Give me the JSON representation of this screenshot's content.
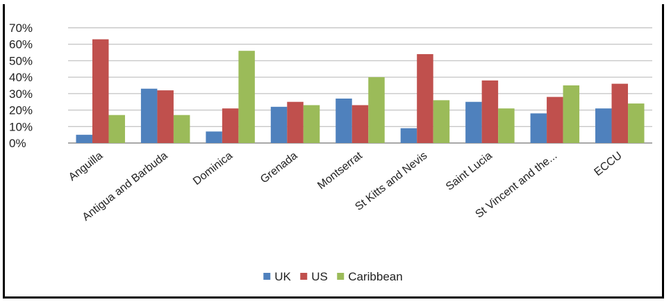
{
  "chart_data": {
    "type": "bar",
    "title": "",
    "xlabel": "",
    "ylabel": "",
    "categories": [
      "Anguilla",
      "Antigua and Barbuda",
      "Dominica",
      "Grenada",
      "Montserrat",
      "St Kitts and Nevis",
      "Saint Lucia",
      "St Vincent  and the...",
      "ECCU"
    ],
    "series": [
      {
        "name": "UK",
        "color": "#4F81BD",
        "values": [
          5,
          33,
          7,
          22,
          27,
          9,
          25,
          18,
          21
        ]
      },
      {
        "name": "US",
        "color": "#C0504D",
        "values": [
          63,
          32,
          21,
          25,
          23,
          54,
          38,
          28,
          36
        ]
      },
      {
        "name": "Caribbean",
        "color": "#9BBB59",
        "values": [
          17,
          17,
          56,
          23,
          40,
          26,
          21,
          35,
          24
        ]
      }
    ],
    "ylim": [
      0,
      70
    ],
    "yticks": [
      0,
      10,
      20,
      30,
      40,
      50,
      60,
      70
    ],
    "ytick_format": "percent",
    "grid": true,
    "legend_position": "bottom"
  }
}
